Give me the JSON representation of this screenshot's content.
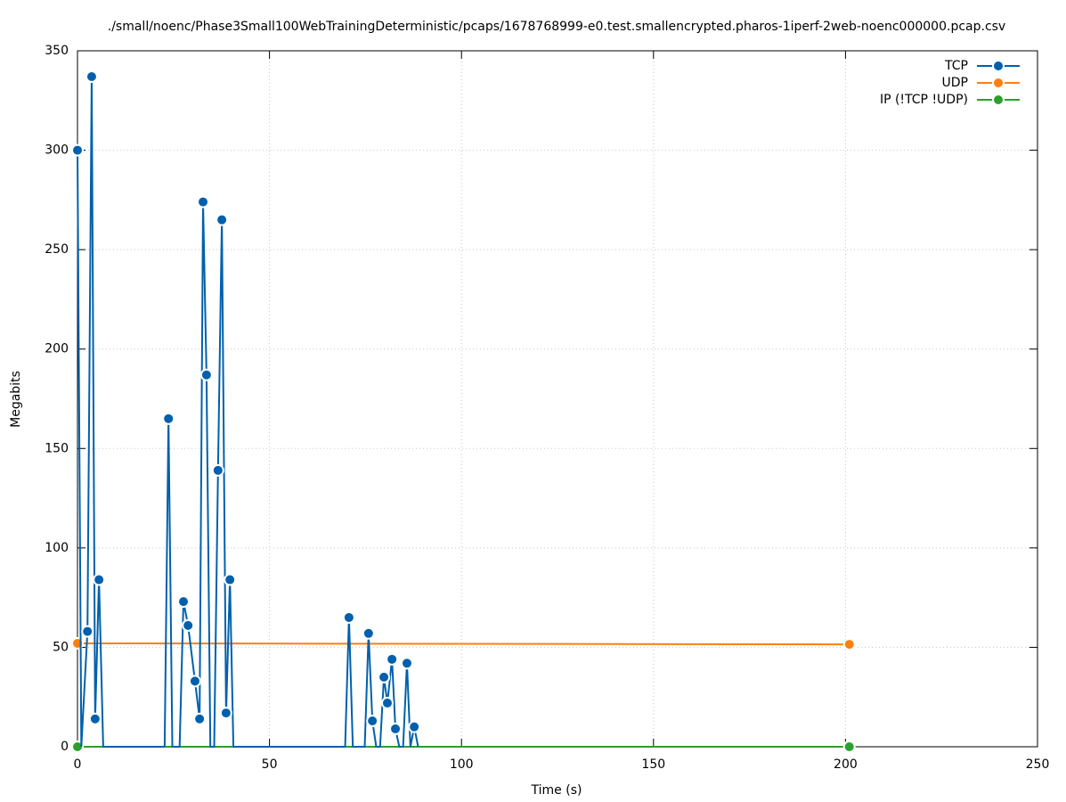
{
  "chart_data": {
    "type": "line",
    "title": "./small/noenc/Phase3Small100WebTrainingDeterministic/pcaps/1678768999-e0.test.smallencrypted.pharos-1iperf-2web-noenc000000.pcap.csv",
    "xlabel": "Time (s)",
    "ylabel": "Megabits",
    "xlim": [
      0,
      250
    ],
    "ylim": [
      0,
      350
    ],
    "xticks": [
      0,
      50,
      100,
      150,
      200,
      250
    ],
    "yticks": [
      0,
      50,
      100,
      150,
      200,
      250,
      300,
      350
    ],
    "grid": true,
    "legend": "top-right",
    "series": [
      {
        "name": "TCP",
        "color": "#0060ad",
        "x": [
          0,
          1,
          2.6,
          3.7,
          4.6,
          5.6,
          6.7,
          22.7,
          23.7,
          24.7,
          26.6,
          27.6,
          28.8,
          30.6,
          31.8,
          32.7,
          33.6,
          34.6,
          35.6,
          36.6,
          37.6,
          38.7,
          39.7,
          40.6,
          69.7,
          70.7,
          71.7,
          74.8,
          75.8,
          76.8,
          77.8,
          78.8,
          79.8,
          80.7,
          81.9,
          82.8,
          83.8,
          84.8,
          85.8,
          86.7,
          87.7,
          88.7
        ],
        "values": [
          300,
          0,
          58,
          337,
          14,
          84,
          0,
          0,
          165,
          0,
          0,
          73,
          61,
          33,
          14,
          274,
          187,
          0,
          0,
          139,
          265,
          17,
          84,
          0,
          0,
          65,
          0,
          0,
          57,
          13,
          0,
          0,
          35,
          22,
          44,
          9,
          0,
          0,
          42,
          0,
          10,
          0
        ]
      },
      {
        "name": "UDP",
        "color": "#ff7f0e",
        "x": [
          0,
          201
        ],
        "values": [
          52,
          51.5
        ]
      },
      {
        "name": "IP (!TCP  !UDP)",
        "color": "#2ca02c",
        "x": [
          0,
          201
        ],
        "values": [
          0,
          0
        ]
      }
    ]
  }
}
